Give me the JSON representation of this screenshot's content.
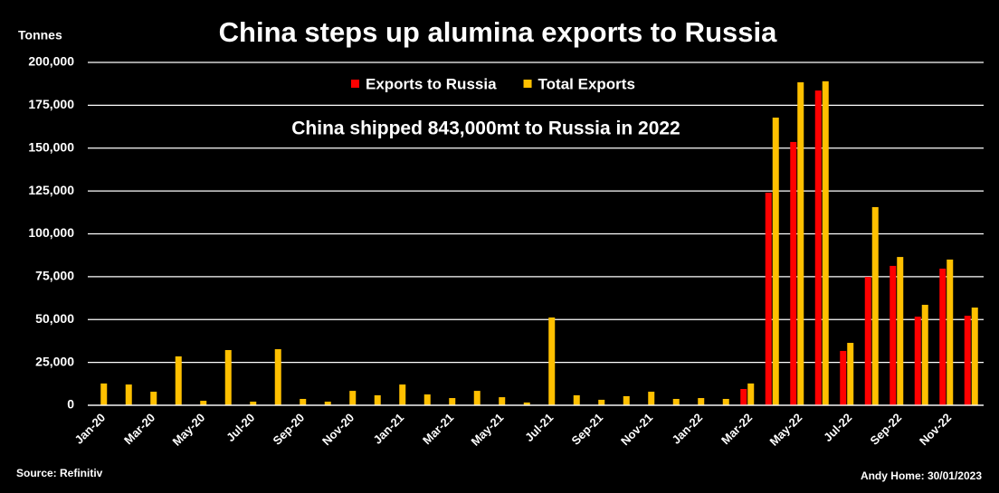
{
  "chart_data": {
    "type": "bar",
    "title": "China steps up alumina exports to Russia",
    "y_axis_label": "Tonnes",
    "annotation": "China shipped 843,000mt to Russia in 2022",
    "source": "Source: Refinitiv",
    "credit": "Andy Home: 30/01/2023",
    "categories": [
      "Jan-20",
      null,
      "Mar-20",
      null,
      "May-20",
      null,
      "Jul-20",
      null,
      "Sep-20",
      null,
      "Nov-20",
      null,
      "Jan-21",
      null,
      "Mar-21",
      null,
      "May-21",
      null,
      "Jul-21",
      null,
      "Sep-21",
      null,
      "Nov-21",
      null,
      "Jan-22",
      null,
      "Mar-22",
      null,
      "May-22",
      null,
      "Jul-22",
      null,
      "Sep-22",
      null,
      "Nov-22",
      null
    ],
    "series": [
      {
        "name": "Exports to Russia",
        "color": "#ff0000",
        "values": [
          0,
          0,
          0,
          0,
          0,
          0,
          0,
          0,
          0,
          0,
          0,
          0,
          0,
          0,
          0,
          0,
          0,
          0,
          0,
          0,
          0,
          0,
          0,
          0,
          0,
          0,
          9500,
          124000,
          153600,
          183600,
          31700,
          74900,
          81300,
          51700,
          79700,
          52200
        ]
      },
      {
        "name": "Total Exports",
        "color": "#ffc000",
        "values": [
          12700,
          12100,
          7900,
          28500,
          2600,
          32200,
          2100,
          32700,
          3700,
          2100,
          8400,
          5800,
          12100,
          6300,
          4200,
          8400,
          4700,
          1600,
          51200,
          5800,
          3200,
          5300,
          7900,
          3700,
          4200,
          3700,
          12700,
          167800,
          188400,
          189000,
          36400,
          115600,
          86500,
          58600,
          85000,
          57000
        ]
      }
    ],
    "ylim": [
      0,
      200000
    ],
    "yticks": [
      0,
      {
        "value": 25000,
        "label": "25,000"
      },
      {
        "value": 50000,
        "label": "50,000"
      },
      {
        "value": 75000,
        "label": "75,000"
      },
      {
        "value": 100000,
        "label": "100,000"
      },
      {
        "value": 125000,
        "label": "125,000"
      },
      {
        "value": 150000,
        "label": "150,000"
      },
      {
        "value": 175000,
        "label": "175,000"
      },
      {
        "value": 200000,
        "label": "200,000"
      }
    ],
    "grid": true
  }
}
